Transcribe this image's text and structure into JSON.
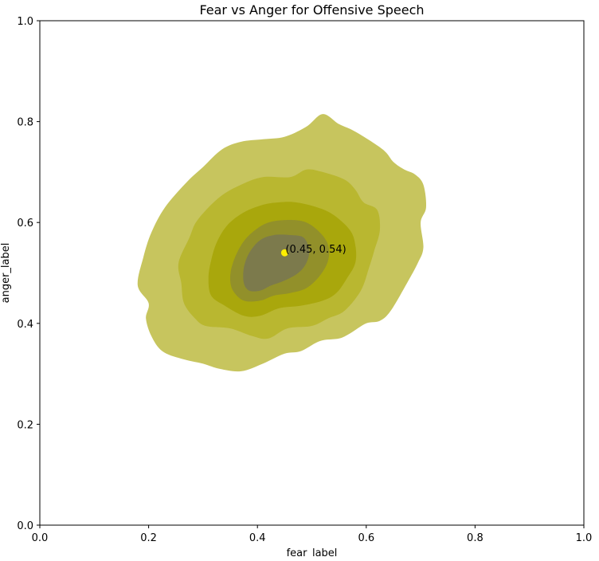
{
  "chart_data": {
    "type": "contour",
    "title": "Fear vs Anger for Offensive Speech",
    "xlabel": "fear_label",
    "ylabel": "anger_label",
    "xlim": [
      0.0,
      1.0
    ],
    "ylim": [
      0.0,
      1.0
    ],
    "xticks": [
      "0.0",
      "0.2",
      "0.4",
      "0.6",
      "0.8",
      "1.0"
    ],
    "yticks": [
      "0.0",
      "0.2",
      "0.4",
      "0.6",
      "0.8",
      "1.0"
    ],
    "grid": false,
    "fill_color": "#a9a800",
    "point_color": "#ffee00",
    "peak": {
      "x": 0.45,
      "y": 0.54,
      "label": "(0.45, 0.54)"
    },
    "contour_levels": [
      {
        "level": 1,
        "color": "#c7c55e",
        "points": [
          [
            0.52,
            0.815
          ],
          [
            0.55,
            0.795
          ],
          [
            0.58,
            0.78
          ],
          [
            0.63,
            0.745
          ],
          [
            0.65,
            0.72
          ],
          [
            0.67,
            0.705
          ],
          [
            0.69,
            0.695
          ],
          [
            0.705,
            0.675
          ],
          [
            0.71,
            0.63
          ],
          [
            0.7,
            0.6
          ],
          [
            0.705,
            0.55
          ],
          [
            0.695,
            0.52
          ],
          [
            0.675,
            0.48
          ],
          [
            0.645,
            0.425
          ],
          [
            0.625,
            0.405
          ],
          [
            0.6,
            0.4
          ],
          [
            0.57,
            0.38
          ],
          [
            0.55,
            0.37
          ],
          [
            0.515,
            0.365
          ],
          [
            0.48,
            0.345
          ],
          [
            0.45,
            0.34
          ],
          [
            0.41,
            0.32
          ],
          [
            0.37,
            0.305
          ],
          [
            0.33,
            0.31
          ],
          [
            0.3,
            0.32
          ],
          [
            0.26,
            0.33
          ],
          [
            0.225,
            0.345
          ],
          [
            0.205,
            0.375
          ],
          [
            0.195,
            0.41
          ],
          [
            0.2,
            0.44
          ],
          [
            0.18,
            0.475
          ],
          [
            0.19,
            0.53
          ],
          [
            0.205,
            0.58
          ],
          [
            0.23,
            0.63
          ],
          [
            0.27,
            0.68
          ],
          [
            0.3,
            0.71
          ],
          [
            0.335,
            0.745
          ],
          [
            0.37,
            0.76
          ],
          [
            0.41,
            0.765
          ],
          [
            0.45,
            0.77
          ],
          [
            0.49,
            0.79
          ]
        ]
      },
      {
        "level": 2,
        "color": "#b9b730",
        "points": [
          [
            0.52,
            0.7
          ],
          [
            0.56,
            0.685
          ],
          [
            0.58,
            0.665
          ],
          [
            0.595,
            0.64
          ],
          [
            0.62,
            0.625
          ],
          [
            0.625,
            0.585
          ],
          [
            0.615,
            0.545
          ],
          [
            0.605,
            0.51
          ],
          [
            0.59,
            0.465
          ],
          [
            0.56,
            0.425
          ],
          [
            0.53,
            0.41
          ],
          [
            0.5,
            0.395
          ],
          [
            0.455,
            0.39
          ],
          [
            0.42,
            0.37
          ],
          [
            0.39,
            0.375
          ],
          [
            0.35,
            0.39
          ],
          [
            0.305,
            0.395
          ],
          [
            0.285,
            0.41
          ],
          [
            0.265,
            0.44
          ],
          [
            0.26,
            0.48
          ],
          [
            0.255,
            0.52
          ],
          [
            0.275,
            0.57
          ],
          [
            0.29,
            0.605
          ],
          [
            0.33,
            0.65
          ],
          [
            0.37,
            0.675
          ],
          [
            0.41,
            0.69
          ],
          [
            0.46,
            0.69
          ],
          [
            0.49,
            0.705
          ]
        ]
      },
      {
        "level": 3,
        "color": "#a9a70c",
        "points": [
          [
            0.47,
            0.64
          ],
          [
            0.51,
            0.63
          ],
          [
            0.54,
            0.615
          ],
          [
            0.57,
            0.585
          ],
          [
            0.58,
            0.555
          ],
          [
            0.58,
            0.52
          ],
          [
            0.565,
            0.49
          ],
          [
            0.545,
            0.46
          ],
          [
            0.52,
            0.445
          ],
          [
            0.48,
            0.435
          ],
          [
            0.44,
            0.43
          ],
          [
            0.405,
            0.415
          ],
          [
            0.375,
            0.415
          ],
          [
            0.34,
            0.435
          ],
          [
            0.315,
            0.455
          ],
          [
            0.31,
            0.49
          ],
          [
            0.315,
            0.525
          ],
          [
            0.325,
            0.56
          ],
          [
            0.345,
            0.595
          ],
          [
            0.375,
            0.62
          ],
          [
            0.41,
            0.635
          ],
          [
            0.44,
            0.64
          ]
        ]
      },
      {
        "level": 4,
        "color": "#92902a",
        "points": [
          [
            0.46,
            0.605
          ],
          [
            0.49,
            0.6
          ],
          [
            0.515,
            0.58
          ],
          [
            0.53,
            0.555
          ],
          [
            0.53,
            0.525
          ],
          [
            0.515,
            0.495
          ],
          [
            0.49,
            0.47
          ],
          [
            0.46,
            0.46
          ],
          [
            0.43,
            0.455
          ],
          [
            0.405,
            0.445
          ],
          [
            0.375,
            0.445
          ],
          [
            0.355,
            0.465
          ],
          [
            0.35,
            0.49
          ],
          [
            0.355,
            0.52
          ],
          [
            0.37,
            0.555
          ],
          [
            0.39,
            0.58
          ],
          [
            0.42,
            0.6
          ]
        ]
      },
      {
        "level": 5,
        "color": "#7c7a4c",
        "points": [
          [
            0.46,
            0.575
          ],
          [
            0.485,
            0.57
          ],
          [
            0.495,
            0.545
          ],
          [
            0.49,
            0.52
          ],
          [
            0.475,
            0.5
          ],
          [
            0.45,
            0.485
          ],
          [
            0.425,
            0.475
          ],
          [
            0.405,
            0.465
          ],
          [
            0.385,
            0.465
          ],
          [
            0.375,
            0.48
          ],
          [
            0.375,
            0.51
          ],
          [
            0.385,
            0.54
          ],
          [
            0.405,
            0.565
          ],
          [
            0.43,
            0.575
          ]
        ]
      }
    ]
  }
}
